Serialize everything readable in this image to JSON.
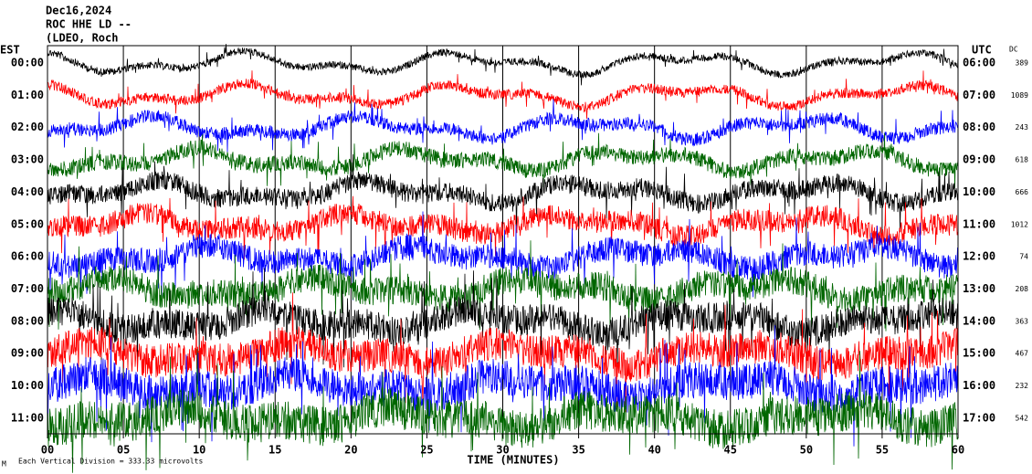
{
  "chart_data": {
    "type": "helicorder",
    "title_lines": [
      "Dec16,2024",
      "ROC HHE LD --",
      "(LDEO, Roch"
    ],
    "left_axis_title": "EST",
    "right_axis_title": "UTC",
    "dc_title": "DC",
    "xlabel": "TIME (MINUTES)",
    "footer": "Each Vertical Division =  333.33 microvolts",
    "corner_mark": "M",
    "xlim": [
      0,
      60
    ],
    "xticks": [
      {
        "value": 0,
        "label": "00"
      },
      {
        "value": 5,
        "label": "05"
      },
      10,
      15,
      20,
      25,
      30,
      35,
      40,
      45,
      50,
      55,
      60
    ],
    "grid": true,
    "rows": [
      {
        "est": "00:00",
        "utc": "06:00",
        "dc": 389,
        "color": "#000000"
      },
      {
        "est": "01:00",
        "utc": "07:00",
        "dc": 1089,
        "color": "#ff0000"
      },
      {
        "est": "02:00",
        "utc": "08:00",
        "dc": 243,
        "color": "#0000ff"
      },
      {
        "est": "03:00",
        "utc": "09:00",
        "dc": 618,
        "color": "#006600"
      },
      {
        "est": "04:00",
        "utc": "10:00",
        "dc": 666,
        "color": "#000000"
      },
      {
        "est": "05:00",
        "utc": "11:00",
        "dc": 1012,
        "color": "#ff0000"
      },
      {
        "est": "06:00",
        "utc": "12:00",
        "dc": 74,
        "color": "#0000ff"
      },
      {
        "est": "07:00",
        "utc": "13:00",
        "dc": 208,
        "color": "#006600"
      },
      {
        "est": "08:00",
        "utc": "14:00",
        "dc": 363,
        "color": "#000000"
      },
      {
        "est": "09:00",
        "utc": "15:00",
        "dc": 467,
        "color": "#ff0000"
      },
      {
        "est": "10:00",
        "utc": "16:00",
        "dc": 232,
        "color": "#0000ff"
      },
      {
        "est": "11:00",
        "utc": "17:00",
        "dc": 542,
        "color": "#006600"
      }
    ]
  }
}
